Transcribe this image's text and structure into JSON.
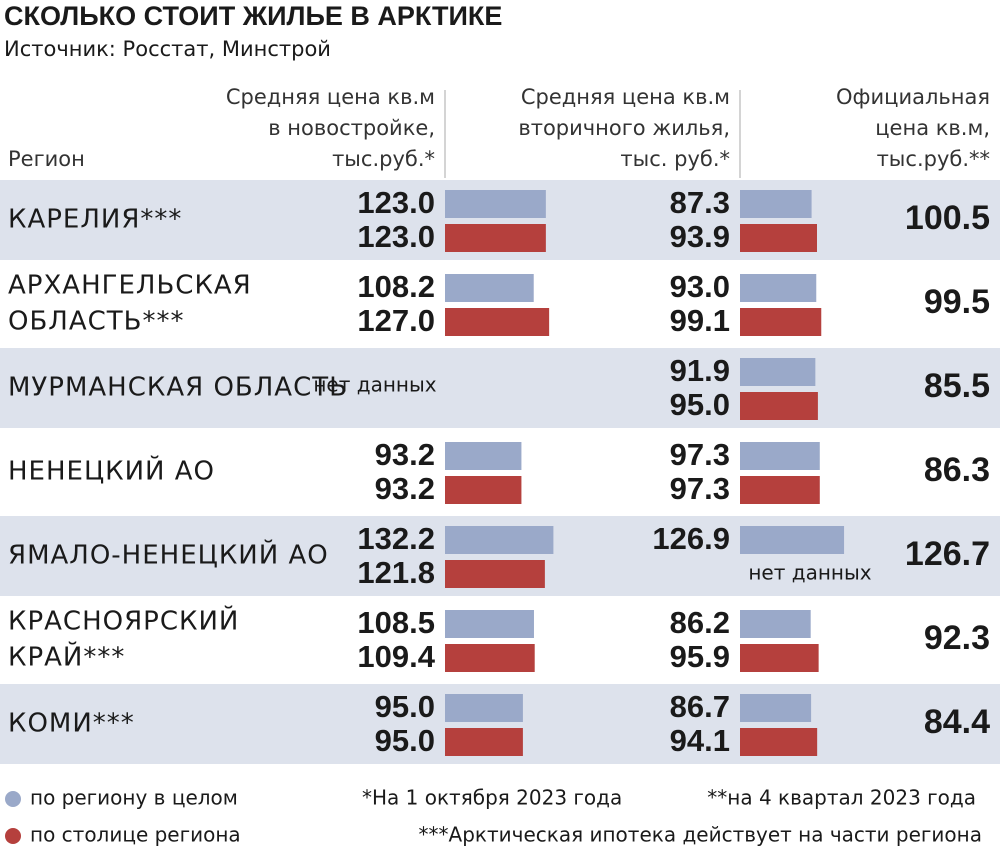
{
  "title": "СКОЛЬКО СТОИТ ЖИЛЬЕ В АРКТИКЕ",
  "source": "Источник: Росстат, Минстрой",
  "columns": {
    "region": [
      "Регион"
    ],
    "new": [
      "Средняя цена кв.м",
      "в новостройке,",
      "тыс.руб.*"
    ],
    "secondary": [
      "Средняя цена кв.м",
      "вторичного жилья,",
      "тыс. руб.*"
    ],
    "official": [
      "Официальная",
      "цена кв.м,",
      "тыс.руб.**"
    ]
  },
  "series": [
    {
      "name": "по региону в целом",
      "color": "#9aa9c9"
    },
    {
      "name": "по столице региона",
      "color": "#b5403d"
    }
  ],
  "rows": [
    {
      "region": [
        "КАРЕЛИЯ***"
      ],
      "new": {
        "values": [
          123.0,
          123.0
        ],
        "value_labels": [
          "123.0",
          "123.0"
        ]
      },
      "secondary": {
        "values": [
          87.3,
          93.9
        ],
        "value_labels": [
          "87.3",
          "93.9"
        ]
      },
      "official": 100.5
    },
    {
      "region": [
        "АРХАНГЕЛЬСКАЯ",
        "ОБЛАСТЬ***"
      ],
      "new": {
        "values": [
          108.2,
          127.0
        ],
        "value_labels": [
          "108.2",
          "127.0"
        ]
      },
      "secondary": {
        "values": [
          93.0,
          99.1
        ],
        "value_labels": [
          "93.0",
          "99.1"
        ]
      },
      "official": 99.5
    },
    {
      "region": [
        "МУРМАНСКАЯ ОБЛАСТЬ"
      ],
      "new": {
        "values": [
          null,
          null
        ],
        "no_data": "нет данных"
      },
      "secondary": {
        "values": [
          91.9,
          95.0
        ],
        "value_labels": [
          "91.9",
          "95.0"
        ]
      },
      "official": 85.5
    },
    {
      "region": [
        "НЕНЕЦКИЙ АО"
      ],
      "new": {
        "values": [
          93.2,
          93.2
        ],
        "value_labels": [
          "93.2",
          "93.2"
        ]
      },
      "secondary": {
        "values": [
          97.3,
          97.3
        ],
        "value_labels": [
          "97.3",
          "97.3"
        ]
      },
      "official": 86.3
    },
    {
      "region": [
        "ЯМАЛО-НЕНЕЦКИЙ АО"
      ],
      "new": {
        "values": [
          132.2,
          121.8
        ],
        "value_labels": [
          "132.2",
          "121.8"
        ]
      },
      "secondary": {
        "values": [
          126.9,
          null
        ],
        "value_labels": [
          "126.9",
          null
        ],
        "no_data": "нет данных"
      },
      "official": 126.7
    },
    {
      "region": [
        "КРАСНОЯРСКИЙ",
        "КРАЙ***"
      ],
      "new": {
        "values": [
          108.5,
          109.4
        ],
        "value_labels": [
          "108.5",
          "109.4"
        ]
      },
      "secondary": {
        "values": [
          86.2,
          95.9
        ],
        "value_labels": [
          "86.2",
          "95.9"
        ]
      },
      "official": 92.3
    },
    {
      "region": [
        "КОМИ***"
      ],
      "new": {
        "values": [
          95.0,
          95.0
        ],
        "value_labels": [
          "95.0",
          "95.0"
        ]
      },
      "secondary": {
        "values": [
          86.7,
          94.1
        ],
        "value_labels": [
          "86.7",
          "94.1"
        ]
      },
      "official": 84.4
    }
  ],
  "footnotes": [
    "*На 1 октября 2023 года",
    "**на 4 квартал 2023 года",
    "***Арктическая ипотека действует на части региона"
  ]
}
